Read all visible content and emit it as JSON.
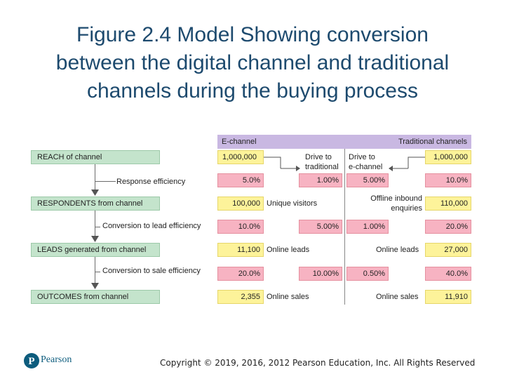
{
  "title": {
    "line1": "Figure 2.4 Model Showing conversion",
    "line2": "between the digital channel and traditional",
    "line3": "channels during the buying process"
  },
  "left": {
    "boxes": [
      "REACH of channel",
      "RESPONDENTS from channel",
      "LEADS generated from channel",
      "OUTCOMES from channel"
    ],
    "efficiencies": [
      "Response efficiency",
      "Conversion to lead efficiency",
      "Conversion to sale efficiency"
    ]
  },
  "table": {
    "e_header": "E-channel",
    "t_header": "Traditional channels",
    "drive_trad": [
      "Drive to",
      "traditional"
    ],
    "drive_e": [
      "Drive to",
      "e-channel"
    ],
    "e_values": [
      "1,000,000",
      "5.0%",
      "100,000",
      "10.0%",
      "11,100",
      "20.0%",
      "2,355"
    ],
    "t_values": [
      "1,000,000",
      "10.0%",
      "110,000",
      "20.0%",
      "27,000",
      "40.0%",
      "11,910"
    ],
    "mid_left": [
      "1.00%",
      "5.00%",
      "10.00%"
    ],
    "mid_right": [
      "5.00%",
      "1.00%",
      "0.50%"
    ],
    "labels": {
      "unique_visitors": "Unique visitors",
      "offline_inbound": [
        "Offline inbound",
        "enquiries"
      ],
      "online_leads_left": "Online leads",
      "online_leads_right": "Online leads",
      "online_sales_left": "Online sales",
      "online_sales_right": "Online sales"
    }
  },
  "brand": "Pearson",
  "footer": "Copyright © 2019, 2016, 2012 Pearson Education, Inc. All Rights Reserved",
  "colors": {
    "title": "#1d4a6e",
    "green": "#c4e4cc",
    "yellow": "#fdf39a",
    "pink": "#f7b3c2",
    "header": "#c9b8e2",
    "logo": "#0d5c7d"
  }
}
